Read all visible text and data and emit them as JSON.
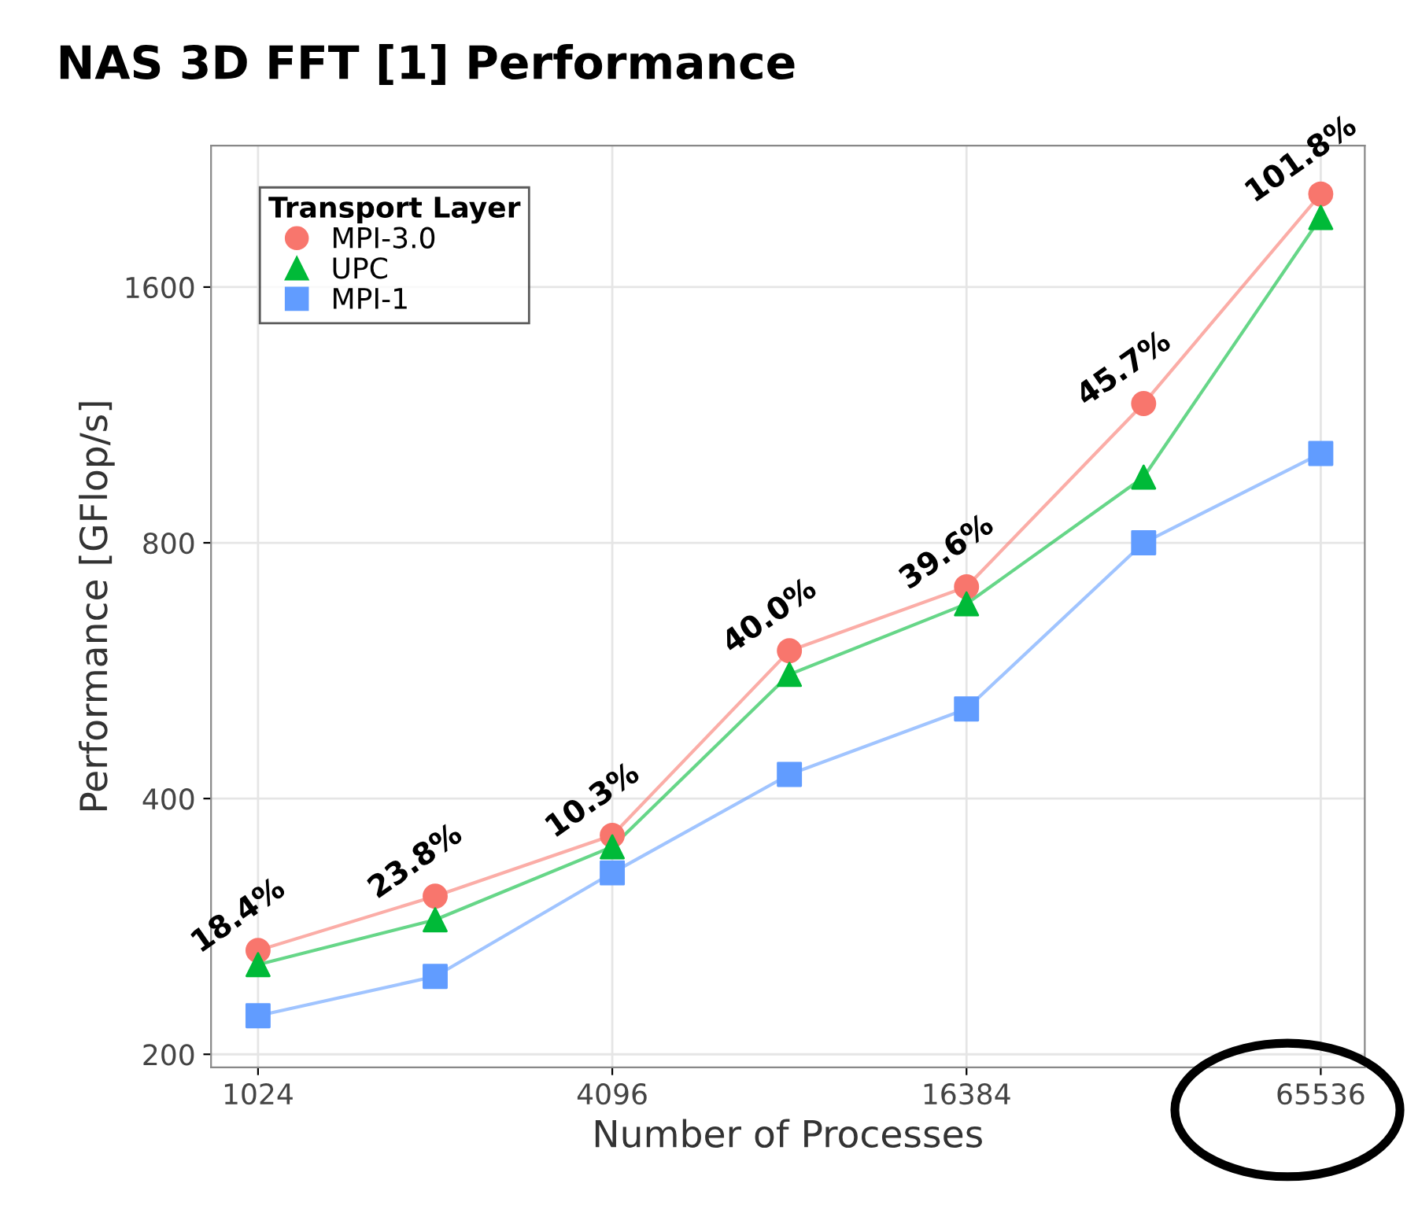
{
  "chart_data": {
    "type": "line",
    "title": "NAS 3D FFT [1] Performance",
    "xlabel": "Number of Processes",
    "ylabel": "Performance [GFlop/s]",
    "legend_title": "Transport Layer",
    "legend": "top left",
    "grid": true,
    "log": "xy",
    "x": [
      1024,
      2048,
      4096,
      8192,
      16384,
      32768,
      65536
    ],
    "xlim": [
      852,
      77860
    ],
    "ylim": [
      193,
      2348
    ],
    "xticks": [
      1024,
      4096,
      16384,
      65536
    ],
    "yticks": [
      200,
      400,
      800,
      1600
    ],
    "series": [
      {
        "name": "MPI-3.0",
        "color": "#f8766d",
        "marker": "circle",
        "values": [
          265,
          307,
          362,
          597,
          710,
          1167,
          2059
        ]
      },
      {
        "name": "UPC",
        "color": "#00ba38",
        "marker": "triangle",
        "values": [
          255,
          288,
          351,
          560,
          678,
          956,
          1932
        ]
      },
      {
        "name": "MPI-1",
        "color": "#619cff",
        "marker": "square",
        "values": [
          222,
          247,
          327,
          427,
          510,
          800,
          1019
        ]
      }
    ],
    "annotations": [
      {
        "text": "18.4%",
        "x": 1024,
        "y": 265
      },
      {
        "text": "23.8%",
        "x": 2048,
        "y": 307
      },
      {
        "text": "10.3%",
        "x": 4096,
        "y": 362
      },
      {
        "text": "40.0%",
        "x": 8192,
        "y": 597
      },
      {
        "text": "39.6%",
        "x": 16384,
        "y": 710
      },
      {
        "text": "45.7%",
        "x": 32768,
        "y": 1167
      },
      {
        "text": "101.8%",
        "x": 65536,
        "y": 2059
      }
    ]
  }
}
